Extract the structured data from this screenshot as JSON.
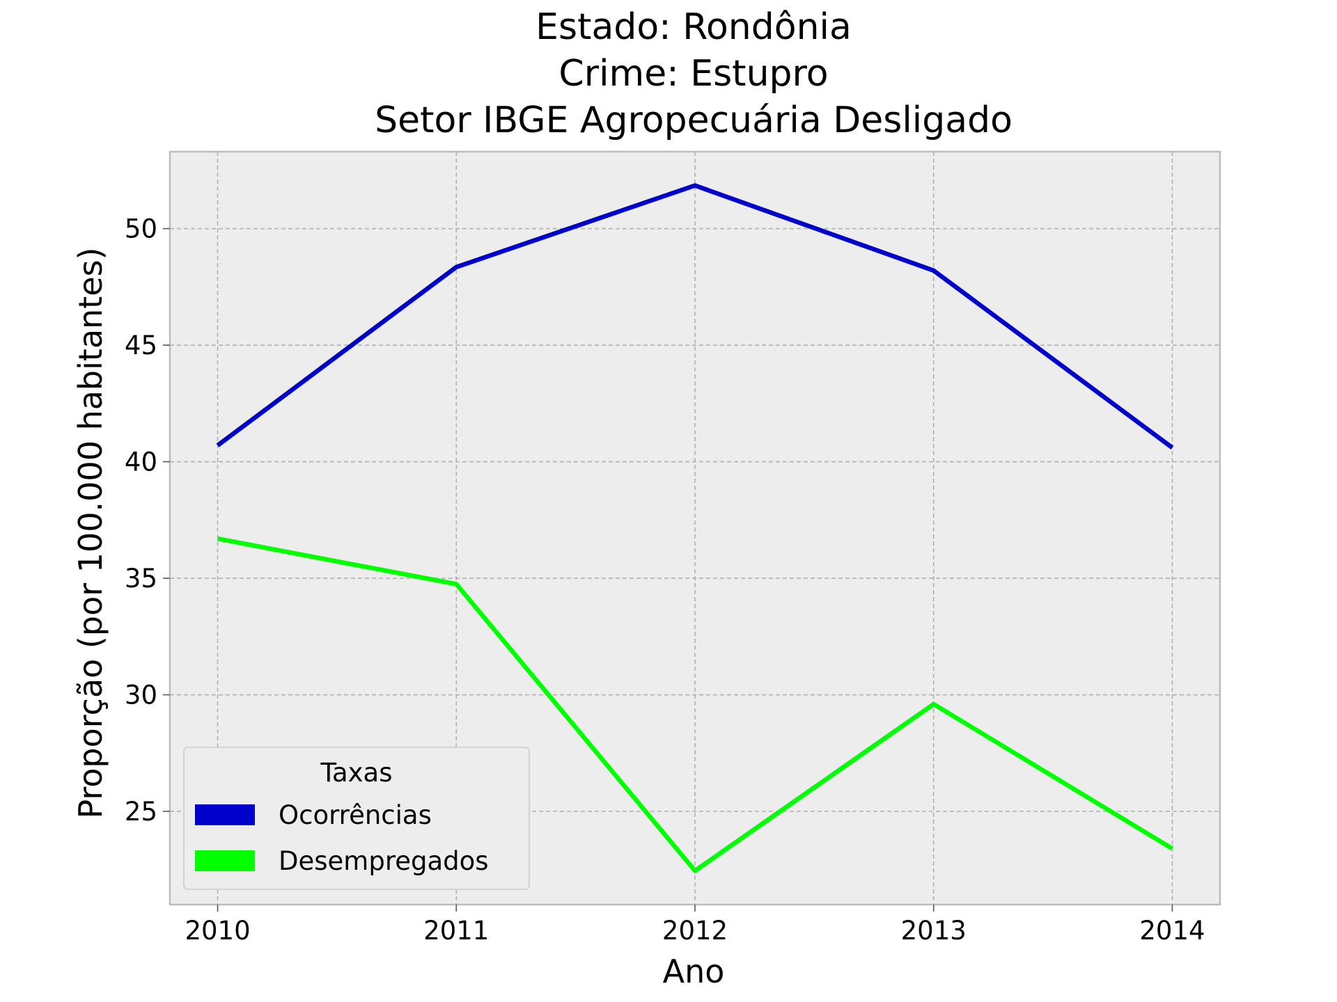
{
  "chart_data": {
    "type": "line",
    "title_lines": [
      "Estado: Rondônia",
      "Crime: Estupro",
      "Setor IBGE  Agropecuária   Desligado"
    ],
    "xlabel": "Ano",
    "ylabel": "Proporção (por 100.000 habitantes)",
    "x": [
      "2010",
      "2011",
      "2012",
      "2013",
      "2014"
    ],
    "xlim": [
      2009.8,
      2014.2
    ],
    "ylim": [
      21.0,
      53.3
    ],
    "yticks": [
      25,
      30,
      35,
      40,
      45,
      50
    ],
    "grid": true,
    "legend": {
      "title": "Taxas",
      "placement": "lower-left"
    },
    "series": [
      {
        "name": "Ocorrências",
        "color": "#0000cc",
        "values": [
          40.7,
          48.35,
          51.85,
          48.2,
          40.6
        ]
      },
      {
        "name": "Desempregados",
        "color": "#00ff00",
        "values": [
          36.7,
          34.75,
          22.45,
          29.6,
          23.4
        ]
      }
    ],
    "background_color": "#ededed"
  }
}
